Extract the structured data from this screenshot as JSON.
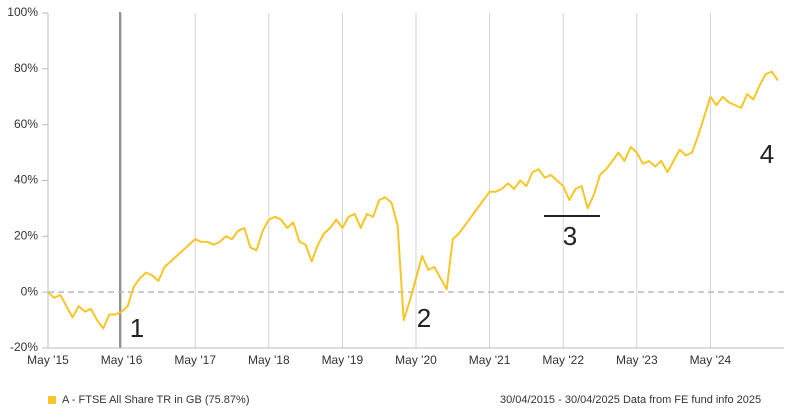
{
  "chart_data": {
    "type": "line",
    "x": [
      "2015-05",
      "2015-06",
      "2015-07",
      "2015-08",
      "2015-09",
      "2015-10",
      "2015-11",
      "2015-12",
      "2016-01",
      "2016-02",
      "2016-03",
      "2016-04",
      "2016-05",
      "2016-06",
      "2016-07",
      "2016-08",
      "2016-09",
      "2016-10",
      "2016-11",
      "2016-12",
      "2017-01",
      "2017-02",
      "2017-03",
      "2017-04",
      "2017-05",
      "2017-06",
      "2017-07",
      "2017-08",
      "2017-09",
      "2017-10",
      "2017-11",
      "2017-12",
      "2018-01",
      "2018-02",
      "2018-03",
      "2018-04",
      "2018-05",
      "2018-06",
      "2018-07",
      "2018-08",
      "2018-09",
      "2018-10",
      "2018-11",
      "2018-12",
      "2019-01",
      "2019-02",
      "2019-03",
      "2019-04",
      "2019-05",
      "2019-06",
      "2019-07",
      "2019-08",
      "2019-09",
      "2019-10",
      "2019-11",
      "2019-12",
      "2020-01",
      "2020-02",
      "2020-03",
      "2020-04",
      "2020-05",
      "2020-06",
      "2020-07",
      "2020-08",
      "2020-09",
      "2020-10",
      "2020-11",
      "2020-12",
      "2021-01",
      "2021-02",
      "2021-03",
      "2021-04",
      "2021-05",
      "2021-06",
      "2021-07",
      "2021-08",
      "2021-09",
      "2021-10",
      "2021-11",
      "2021-12",
      "2022-01",
      "2022-02",
      "2022-03",
      "2022-04",
      "2022-05",
      "2022-06",
      "2022-07",
      "2022-08",
      "2022-09",
      "2022-10",
      "2022-11",
      "2022-12",
      "2023-01",
      "2023-02",
      "2023-03",
      "2023-04",
      "2023-05",
      "2023-06",
      "2023-07",
      "2023-08",
      "2023-09",
      "2023-10",
      "2023-11",
      "2023-12",
      "2024-01",
      "2024-02",
      "2024-03",
      "2024-04",
      "2024-05",
      "2024-06",
      "2024-07",
      "2024-08",
      "2024-09",
      "2024-10",
      "2024-11",
      "2024-12",
      "2025-01",
      "2025-02",
      "2025-03",
      "2025-04"
    ],
    "series": [
      {
        "name": "A - FTSE All Share TR in GB (75.87%)",
        "color": "#f6c52a",
        "values": [
          0,
          -2,
          -1,
          -5,
          -9,
          -5,
          -7,
          -6,
          -10,
          -13,
          -8,
          -8,
          -7,
          -5,
          2,
          5,
          7,
          6,
          4,
          9,
          11,
          13,
          15,
          17,
          19,
          18,
          18,
          17,
          18,
          20,
          19,
          22,
          23,
          16,
          15,
          22,
          26,
          27,
          26,
          23,
          25,
          18,
          17,
          11,
          17,
          21,
          23,
          26,
          23,
          27,
          28,
          23,
          28,
          27,
          33,
          34,
          32,
          24,
          -10,
          -3,
          5,
          13,
          8,
          9,
          5,
          1,
          19,
          21,
          24,
          27,
          30,
          33,
          36,
          36,
          37,
          39,
          37,
          40,
          38,
          43,
          44,
          41,
          42,
          40,
          38,
          33,
          37,
          38,
          30,
          35,
          42,
          44,
          47,
          50,
          47,
          52,
          50,
          46,
          47,
          45,
          47,
          43,
          47,
          51,
          49,
          50,
          56,
          63,
          70,
          67,
          70,
          68,
          67,
          66,
          71,
          69,
          74,
          78,
          79,
          75.87
        ]
      }
    ],
    "xlim": [
      "2015-05",
      "2025-05"
    ],
    "xticks": [
      {
        "value": "2015-05",
        "label": "May '15"
      },
      {
        "value": "2016-05",
        "label": "May '16"
      },
      {
        "value": "2017-05",
        "label": "May '17"
      },
      {
        "value": "2018-05",
        "label": "May '18"
      },
      {
        "value": "2019-05",
        "label": "May '19"
      },
      {
        "value": "2020-05",
        "label": "May '20"
      },
      {
        "value": "2021-05",
        "label": "May '21"
      },
      {
        "value": "2022-05",
        "label": "May '22"
      },
      {
        "value": "2023-05",
        "label": "May '23"
      },
      {
        "value": "2024-05",
        "label": "May '24"
      }
    ],
    "ylim": [
      -20,
      100
    ],
    "yticks": [
      {
        "value": -20,
        "label": "-20%"
      },
      {
        "value": 0,
        "label": "0%"
      },
      {
        "value": 20,
        "label": "20%"
      },
      {
        "value": 40,
        "label": "40%"
      },
      {
        "value": 60,
        "label": "60%"
      },
      {
        "value": 80,
        "label": "80%"
      },
      {
        "value": 100,
        "label": "100%"
      }
    ],
    "grid": true,
    "zero_line": true,
    "annotations": [
      "1",
      "2",
      "3",
      "4"
    ],
    "footnote": "30/04/2015 - 30/04/2025 Data from FE fund info 2025"
  }
}
